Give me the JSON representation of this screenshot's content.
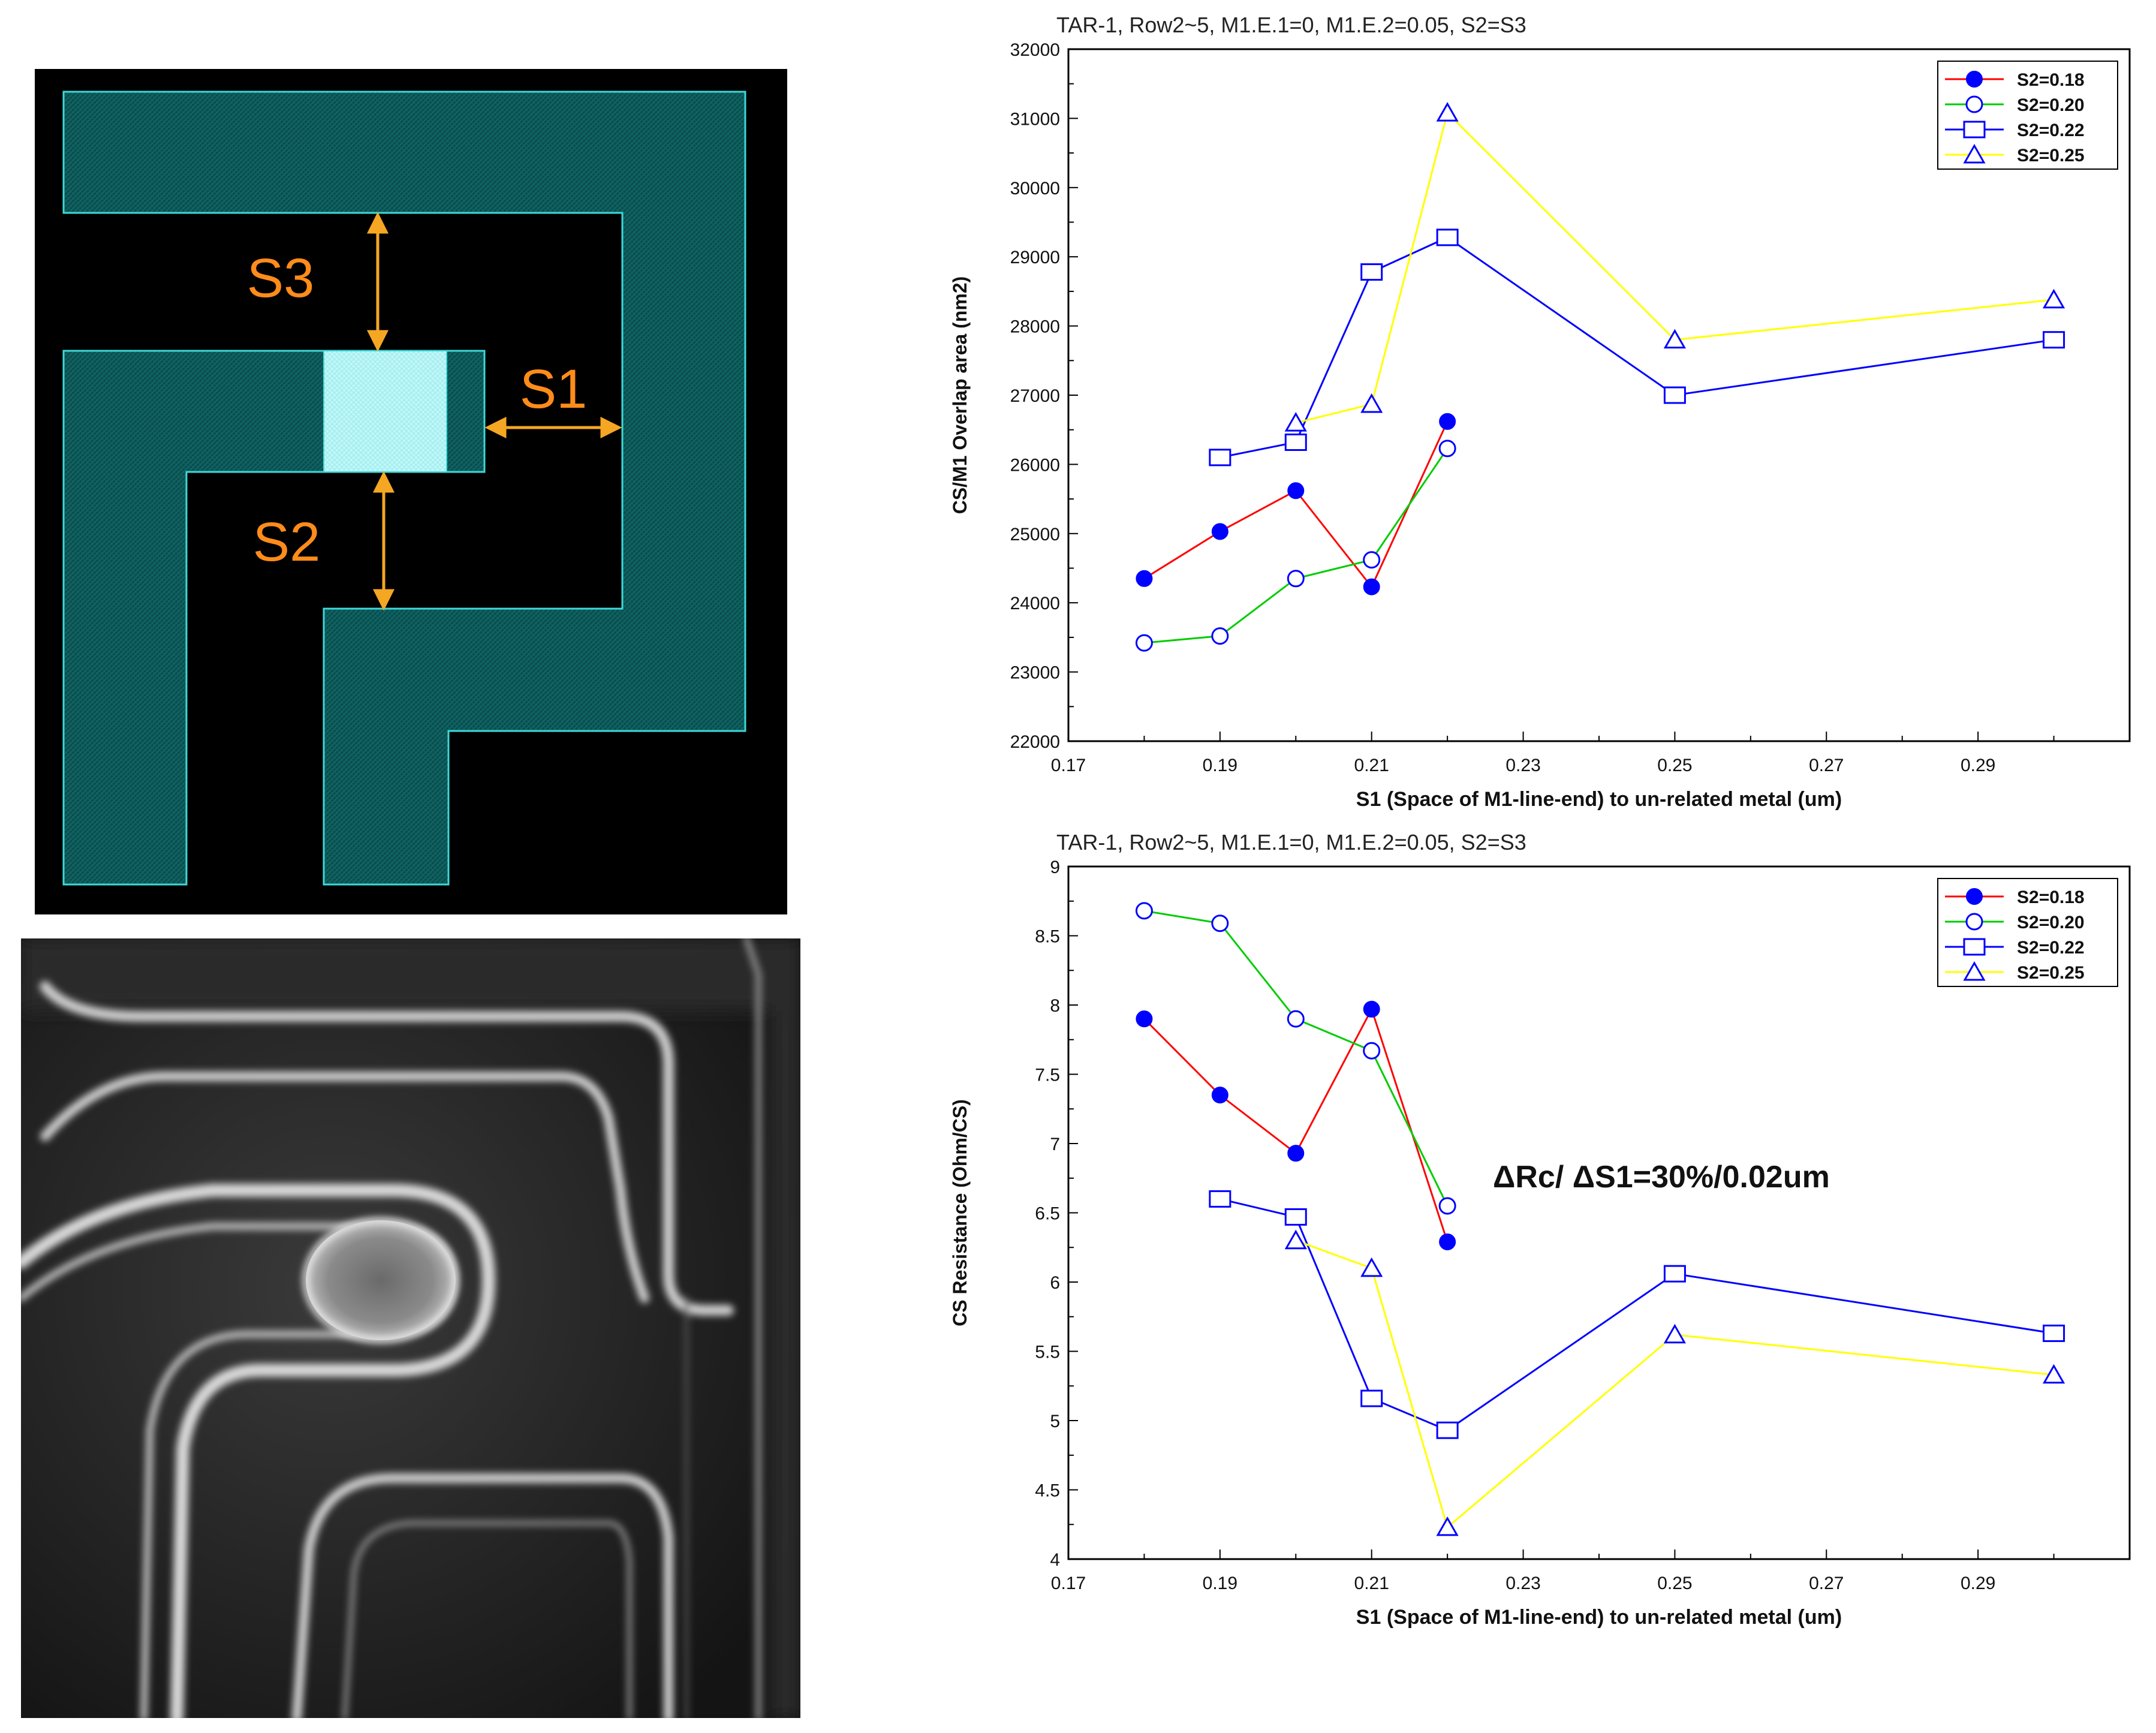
{
  "layout_diagram": {
    "labels": [
      "S3",
      "S1",
      "S2"
    ],
    "colors": {
      "background": "#000000",
      "metal": "#0a5555",
      "metal_edge": "#3fd8d8",
      "contact": "#c8ffff",
      "dimension": "#f5a623",
      "label": "#ff8c1a"
    }
  },
  "sem_image": {
    "description_icon": "sem-micrograph"
  },
  "chart_data": [
    {
      "type": "line",
      "title": "TAR-1, Row2~5, M1.E.1=0, M1.E.2=0.05, S2=S3",
      "xlabel": "S1 (Space of M1-line-end) to un-related metal (um)",
      "ylabel": "CS/M1 Overlap area (nm2)",
      "xlim": [
        0.17,
        0.31
      ],
      "ylim": [
        22000,
        32000
      ],
      "xticks": [
        "0.17",
        "0.19",
        "0.21",
        "0.23",
        "0.25",
        "0.27",
        "0.29"
      ],
      "yticks": [
        "22000",
        "23000",
        "24000",
        "25000",
        "26000",
        "27000",
        "28000",
        "29000",
        "30000",
        "31000",
        "32000"
      ],
      "legend_position": "top-right",
      "series": [
        {
          "name": "S2=0.18",
          "color": "#ff0000",
          "marker_color": "#0000ff",
          "marker": "filled-circle",
          "x": [
            0.18,
            0.19,
            0.2,
            0.21,
            0.22
          ],
          "y": [
            24350,
            25030,
            25620,
            24230,
            26620
          ]
        },
        {
          "name": "S2=0.20",
          "color": "#00cc00",
          "marker_color": "#0000ff",
          "marker": "open-circle",
          "x": [
            0.18,
            0.19,
            0.2,
            0.21,
            0.22
          ],
          "y": [
            23420,
            23520,
            24350,
            24620,
            26230
          ]
        },
        {
          "name": "S2=0.22",
          "color": "#0000ff",
          "marker_color": "#0000ff",
          "marker": "open-square",
          "x": [
            0.19,
            0.2,
            0.21,
            0.22,
            0.25,
            0.3
          ],
          "y": [
            26100,
            26320,
            28780,
            29280,
            27000,
            27800
          ]
        },
        {
          "name": "S2=0.25",
          "color": "#ffff00",
          "marker_color": "#0000ff",
          "marker": "open-triangle",
          "x": [
            0.2,
            0.21,
            0.22,
            0.25,
            0.3
          ],
          "y": [
            26600,
            26870,
            31080,
            27800,
            28380
          ]
        }
      ]
    },
    {
      "type": "line",
      "title": "TAR-1, Row2~5, M1.E.1=0, M1.E.2=0.05, S2=S3",
      "xlabel": "S1 (Space of M1-line-end) to un-related metal (um)",
      "ylabel": "CS Resistance (Ohm/CS)",
      "xlim": [
        0.17,
        0.31
      ],
      "ylim": [
        4,
        9
      ],
      "xticks": [
        "0.17",
        "0.19",
        "0.21",
        "0.23",
        "0.25",
        "0.27",
        "0.29"
      ],
      "yticks": [
        "4",
        "4.5",
        "5",
        "5.5",
        "6",
        "6.5",
        "7",
        "7.5",
        "8",
        "8.5",
        "9"
      ],
      "legend_position": "top-right",
      "annotation": "ΔRc/ ΔS1=30%/0.02um",
      "series": [
        {
          "name": "S2=0.18",
          "color": "#ff0000",
          "marker_color": "#0000ff",
          "marker": "filled-circle",
          "x": [
            0.18,
            0.19,
            0.2,
            0.21,
            0.22
          ],
          "y": [
            7.9,
            7.35,
            6.93,
            7.97,
            6.29
          ]
        },
        {
          "name": "S2=0.20",
          "color": "#00cc00",
          "marker_color": "#0000ff",
          "marker": "open-circle",
          "x": [
            0.18,
            0.19,
            0.2,
            0.21,
            0.22
          ],
          "y": [
            8.68,
            8.59,
            7.9,
            7.67,
            6.55
          ]
        },
        {
          "name": "S2=0.22",
          "color": "#0000ff",
          "marker_color": "#0000ff",
          "marker": "open-square",
          "x": [
            0.19,
            0.2,
            0.21,
            0.22,
            0.25,
            0.3
          ],
          "y": [
            6.6,
            6.47,
            5.16,
            4.93,
            6.06,
            5.63
          ]
        },
        {
          "name": "S2=0.25",
          "color": "#ffff00",
          "marker_color": "#0000ff",
          "marker": "open-triangle",
          "x": [
            0.2,
            0.21,
            0.22,
            0.25,
            0.3
          ],
          "y": [
            6.3,
            6.1,
            4.23,
            5.62,
            5.33
          ]
        }
      ]
    }
  ]
}
